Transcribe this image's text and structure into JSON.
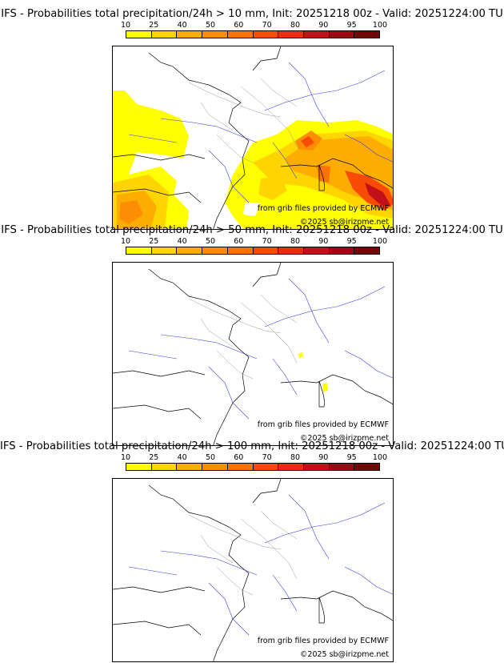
{
  "colorbar": {
    "ticks": [
      "10",
      "25",
      "40",
      "50",
      "60",
      "70",
      "80",
      "90",
      "95",
      "100"
    ],
    "colors": [
      "#ffff00",
      "#fed501",
      "#fdac02",
      "#fd8e04",
      "#fc7203",
      "#f84c04",
      "#ee2a12",
      "#c2101a",
      "#9c0912",
      "#700808"
    ]
  },
  "credits": {
    "source": "from grib files provided by ECMWF",
    "copyright": "©2025 sb@irizpme.net"
  },
  "panels": [
    {
      "title": "IFS - Probabilities total precipitation/24h > 10 mm, Init: 20251218 00z - Valid: 20251224:00 TU"
    },
    {
      "title": "IFS - Probabilities total precipitation/24h > 50 mm, Init: 20251218 00z - Valid: 20251224:00 TU"
    },
    {
      "title": "IFS - Probabilities total precipitation/24h > 100 mm, Init: 20251218 00z - Valid: 20251224:00 TU"
    }
  ]
}
